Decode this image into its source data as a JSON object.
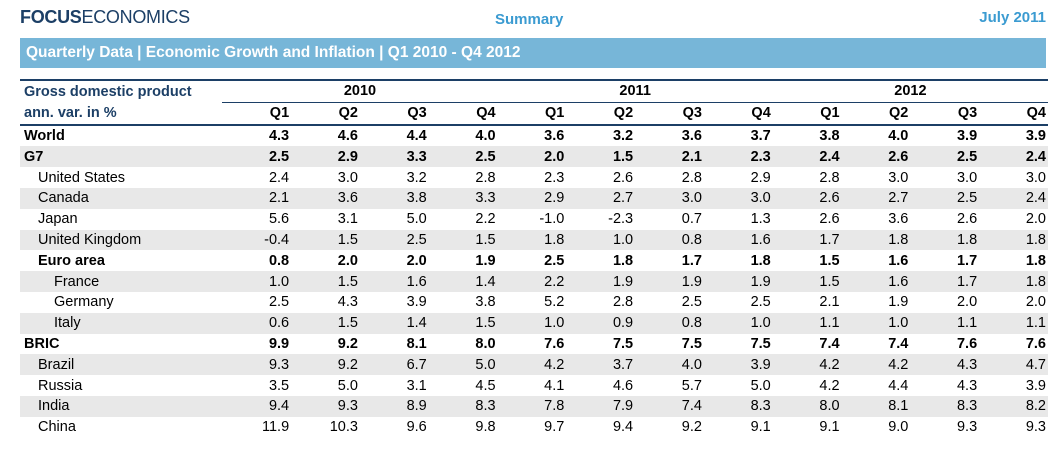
{
  "header": {
    "logo_bold": "FOCUS",
    "logo_light": "ECONOMICS",
    "center_title": "Summary",
    "date": "July 2011"
  },
  "banner": "Quarterly Data | Economic Growth and Inflation | Q1 2010 - Q4 2012",
  "table": {
    "title_line1": "Gross domestic product",
    "title_line2": "ann. var. in %",
    "years": [
      "2010",
      "2011",
      "2012"
    ],
    "quarters": [
      "Q1",
      "Q2",
      "Q3",
      "Q4",
      "Q1",
      "Q2",
      "Q3",
      "Q4",
      "Q1",
      "Q2",
      "Q3",
      "Q4"
    ],
    "rows": [
      {
        "label": "World",
        "level": 0,
        "bold": true,
        "values": [
          "4.3",
          "4.6",
          "4.4",
          "4.0",
          "3.6",
          "3.2",
          "3.6",
          "3.7",
          "3.8",
          "4.0",
          "3.9",
          "3.9"
        ]
      },
      {
        "label": "G7",
        "level": 0,
        "bold": true,
        "values": [
          "2.5",
          "2.9",
          "3.3",
          "2.5",
          "2.0",
          "1.5",
          "2.1",
          "2.3",
          "2.4",
          "2.6",
          "2.5",
          "2.4"
        ]
      },
      {
        "label": "United States",
        "level": 1,
        "bold": false,
        "values": [
          "2.4",
          "3.0",
          "3.2",
          "2.8",
          "2.3",
          "2.6",
          "2.8",
          "2.9",
          "2.8",
          "3.0",
          "3.0",
          "3.0"
        ]
      },
      {
        "label": "Canada",
        "level": 1,
        "bold": false,
        "values": [
          "2.1",
          "3.6",
          "3.8",
          "3.3",
          "2.9",
          "2.7",
          "3.0",
          "3.0",
          "2.6",
          "2.7",
          "2.5",
          "2.4"
        ]
      },
      {
        "label": "Japan",
        "level": 1,
        "bold": false,
        "values": [
          "5.6",
          "3.1",
          "5.0",
          "2.2",
          "-1.0",
          "-2.3",
          "0.7",
          "1.3",
          "2.6",
          "3.6",
          "2.6",
          "2.0"
        ]
      },
      {
        "label": "United Kingdom",
        "level": 1,
        "bold": false,
        "values": [
          "-0.4",
          "1.5",
          "2.5",
          "1.5",
          "1.8",
          "1.0",
          "0.8",
          "1.6",
          "1.7",
          "1.8",
          "1.8",
          "1.8"
        ]
      },
      {
        "label": "Euro area",
        "level": 1,
        "bold": true,
        "values": [
          "0.8",
          "2.0",
          "2.0",
          "1.9",
          "2.5",
          "1.8",
          "1.7",
          "1.8",
          "1.5",
          "1.6",
          "1.7",
          "1.8"
        ]
      },
      {
        "label": "France",
        "level": 2,
        "bold": false,
        "values": [
          "1.0",
          "1.5",
          "1.6",
          "1.4",
          "2.2",
          "1.9",
          "1.9",
          "1.9",
          "1.5",
          "1.6",
          "1.7",
          "1.8"
        ]
      },
      {
        "label": "Germany",
        "level": 2,
        "bold": false,
        "values": [
          "2.5",
          "4.3",
          "3.9",
          "3.8",
          "5.2",
          "2.8",
          "2.5",
          "2.5",
          "2.1",
          "1.9",
          "2.0",
          "2.0"
        ]
      },
      {
        "label": "Italy",
        "level": 2,
        "bold": false,
        "values": [
          "0.6",
          "1.5",
          "1.4",
          "1.5",
          "1.0",
          "0.9",
          "0.8",
          "1.0",
          "1.1",
          "1.0",
          "1.1",
          "1.1"
        ]
      },
      {
        "label": "BRIC",
        "level": 0,
        "bold": true,
        "values": [
          "9.9",
          "9.2",
          "8.1",
          "8.0",
          "7.6",
          "7.5",
          "7.5",
          "7.5",
          "7.4",
          "7.4",
          "7.6",
          "7.6"
        ]
      },
      {
        "label": "Brazil",
        "level": 1,
        "bold": false,
        "values": [
          "9.3",
          "9.2",
          "6.7",
          "5.0",
          "4.2",
          "3.7",
          "4.0",
          "3.9",
          "4.2",
          "4.2",
          "4.3",
          "4.7"
        ]
      },
      {
        "label": "Russia",
        "level": 1,
        "bold": false,
        "values": [
          "3.5",
          "5.0",
          "3.1",
          "4.5",
          "4.1",
          "4.6",
          "5.7",
          "5.0",
          "4.2",
          "4.4",
          "4.3",
          "3.9"
        ]
      },
      {
        "label": "India",
        "level": 1,
        "bold": false,
        "values": [
          "9.4",
          "9.3",
          "8.9",
          "8.3",
          "7.8",
          "7.9",
          "7.4",
          "8.3",
          "8.0",
          "8.1",
          "8.3",
          "8.2"
        ]
      },
      {
        "label": "China",
        "level": 1,
        "bold": false,
        "values": [
          "11.9",
          "10.3",
          "9.6",
          "9.8",
          "9.7",
          "9.4",
          "9.2",
          "9.1",
          "9.1",
          "9.0",
          "9.3",
          "9.3"
        ]
      }
    ]
  }
}
